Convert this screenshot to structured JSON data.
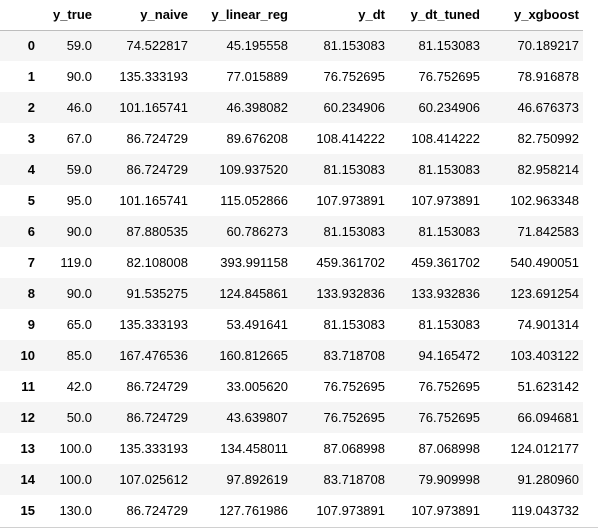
{
  "table": {
    "columns": [
      "",
      "y_true",
      "y_naive",
      "y_linear_reg",
      "y_dt",
      "y_dt_tuned",
      "y_xgboost"
    ],
    "rows": [
      [
        "0",
        "59.0",
        "74.522817",
        "45.195558",
        "81.153083",
        "81.153083",
        "70.189217"
      ],
      [
        "1",
        "90.0",
        "135.333193",
        "77.015889",
        "76.752695",
        "76.752695",
        "78.916878"
      ],
      [
        "2",
        "46.0",
        "101.165741",
        "46.398082",
        "60.234906",
        "60.234906",
        "46.676373"
      ],
      [
        "3",
        "67.0",
        "86.724729",
        "89.676208",
        "108.414222",
        "108.414222",
        "82.750992"
      ],
      [
        "4",
        "59.0",
        "86.724729",
        "109.937520",
        "81.153083",
        "81.153083",
        "82.958214"
      ],
      [
        "5",
        "95.0",
        "101.165741",
        "115.052866",
        "107.973891",
        "107.973891",
        "102.963348"
      ],
      [
        "6",
        "90.0",
        "87.880535",
        "60.786273",
        "81.153083",
        "81.153083",
        "71.842583"
      ],
      [
        "7",
        "119.0",
        "82.108008",
        "393.991158",
        "459.361702",
        "459.361702",
        "540.490051"
      ],
      [
        "8",
        "90.0",
        "91.535275",
        "124.845861",
        "133.932836",
        "133.932836",
        "123.691254"
      ],
      [
        "9",
        "65.0",
        "135.333193",
        "53.491641",
        "81.153083",
        "81.153083",
        "74.901314"
      ],
      [
        "10",
        "85.0",
        "167.476536",
        "160.812665",
        "83.718708",
        "94.165472",
        "103.403122"
      ],
      [
        "11",
        "42.0",
        "86.724729",
        "33.005620",
        "76.752695",
        "76.752695",
        "51.623142"
      ],
      [
        "12",
        "50.0",
        "86.724729",
        "43.639807",
        "76.752695",
        "76.752695",
        "66.094681"
      ],
      [
        "13",
        "100.0",
        "135.333193",
        "134.458011",
        "87.068998",
        "87.068998",
        "124.012177"
      ],
      [
        "14",
        "100.0",
        "107.025612",
        "97.892619",
        "83.718708",
        "79.909998",
        "91.280960"
      ],
      [
        "15",
        "130.0",
        "86.724729",
        "127.761986",
        "107.973891",
        "107.973891",
        "119.043732"
      ]
    ]
  }
}
